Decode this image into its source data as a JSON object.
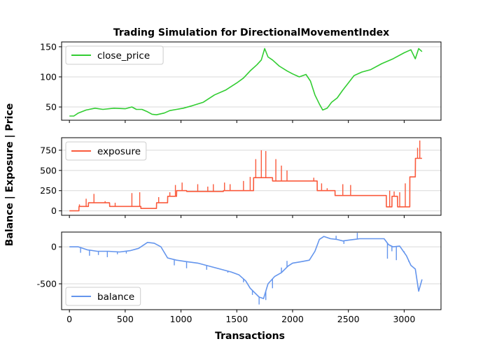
{
  "chart_data": {
    "title": "Trading Simulation for DirectionalMovementIndex",
    "xlabel": "Transactions",
    "ylabel": "Balance | Exposure | Price",
    "xlim": [
      -70,
      3330
    ],
    "xticks": [
      0,
      500,
      1000,
      1500,
      2000,
      2500,
      3000
    ],
    "grid": "horizontal",
    "panels": [
      {
        "type": "line",
        "series_name": "close_price",
        "color": "#32cd32",
        "legend_position": "upper-left",
        "ylim": [
          28,
          158
        ],
        "yticks": [
          50,
          100,
          150
        ],
        "x": [
          0,
          40,
          80,
          150,
          230,
          300,
          400,
          500,
          560,
          600,
          650,
          700,
          740,
          780,
          850,
          900,
          960,
          1020,
          1100,
          1200,
          1300,
          1400,
          1500,
          1560,
          1620,
          1680,
          1720,
          1750,
          1780,
          1820,
          1880,
          1950,
          2000,
          2060,
          2120,
          2160,
          2200,
          2240,
          2270,
          2310,
          2350,
          2400,
          2450,
          2500,
          2550,
          2620,
          2700,
          2800,
          2900,
          3000,
          3060,
          3100,
          3130,
          3160
        ],
        "values": [
          35,
          35,
          40,
          45,
          48,
          46,
          48,
          47,
          50,
          46,
          46,
          42,
          38,
          37,
          40,
          44,
          46,
          48,
          52,
          58,
          70,
          78,
          90,
          98,
          110,
          120,
          128,
          147,
          133,
          128,
          118,
          110,
          105,
          100,
          104,
          93,
          70,
          55,
          45,
          48,
          58,
          65,
          78,
          90,
          102,
          108,
          112,
          122,
          130,
          140,
          145,
          130,
          147,
          142
        ]
      },
      {
        "type": "line",
        "series_name": "exposure",
        "color": "#fa5a3c",
        "legend_position": "upper-left",
        "ylim": [
          -55,
          905
        ],
        "yticks": [
          0,
          250,
          500,
          750
        ],
        "x": [
          0,
          85,
          86,
          170,
          171,
          360,
          361,
          640,
          641,
          780,
          781,
          880,
          881,
          960,
          961,
          1050,
          1051,
          1380,
          1381,
          1650,
          1651,
          1820,
          1821,
          2220,
          2221,
          2380,
          2381,
          2840,
          2841,
          2890,
          2891,
          2940,
          2941,
          3050,
          3051,
          3100,
          3101,
          3160
        ],
        "values": [
          0,
          0,
          55,
          55,
          100,
          100,
          55,
          55,
          30,
          30,
          100,
          100,
          180,
          180,
          250,
          250,
          240,
          240,
          250,
          250,
          410,
          410,
          370,
          370,
          250,
          250,
          190,
          190,
          50,
          50,
          180,
          180,
          50,
          50,
          420,
          420,
          650,
          650
        ],
        "spike_x": [
          90,
          150,
          220,
          320,
          410,
          560,
          630,
          800,
          900,
          950,
          1010,
          1150,
          1240,
          1290,
          1390,
          1440,
          1560,
          1620,
          1670,
          1720,
          1760,
          1850,
          1900,
          1950,
          2190,
          2260,
          2310,
          2450,
          2520,
          2870,
          2910,
          2960,
          3010,
          3120,
          3140
        ],
        "spike_values": [
          80,
          150,
          210,
          120,
          100,
          220,
          230,
          170,
          230,
          320,
          350,
          330,
          300,
          330,
          350,
          330,
          370,
          420,
          640,
          750,
          740,
          640,
          560,
          500,
          410,
          340,
          280,
          330,
          320,
          250,
          240,
          230,
          340,
          780,
          870
        ]
      },
      {
        "type": "line",
        "series_name": "balance",
        "color": "#6495ed",
        "legend_position": "lower-left",
        "ylim": [
          -850,
          200
        ],
        "yticks": [
          0,
          -500
        ],
        "x": [
          0,
          80,
          160,
          250,
          350,
          450,
          550,
          620,
          700,
          760,
          820,
          880,
          960,
          1050,
          1150,
          1250,
          1350,
          1450,
          1520,
          1580,
          1620,
          1660,
          1700,
          1740,
          1780,
          1840,
          1900,
          1960,
          2000,
          2080,
          2150,
          2200,
          2240,
          2280,
          2340,
          2400,
          2450,
          2500,
          2550,
          2600,
          2650,
          2700,
          2760,
          2820,
          2860,
          2900,
          2960,
          3020,
          3060,
          3100,
          3130,
          3160
        ],
        "values": [
          0,
          0,
          -40,
          -60,
          -60,
          -70,
          -50,
          -20,
          60,
          50,
          0,
          -150,
          -180,
          -200,
          -220,
          -260,
          -300,
          -340,
          -380,
          -460,
          -560,
          -620,
          -680,
          -700,
          -500,
          -400,
          -350,
          -260,
          -220,
          -200,
          -180,
          -60,
          100,
          140,
          110,
          100,
          80,
          90,
          100,
          110,
          110,
          110,
          110,
          110,
          30,
          0,
          10,
          -120,
          -250,
          -300,
          -600,
          -440
        ],
        "spike_x": [
          100,
          180,
          260,
          340,
          430,
          510,
          940,
          1050,
          1230,
          1420,
          1560,
          1640,
          1700,
          1760,
          1820,
          1860,
          1900,
          1950,
          2390,
          2460,
          2580,
          2850,
          2890,
          2930,
          3000,
          3040
        ],
        "spike_values": [
          -80,
          -120,
          -110,
          -140,
          -100,
          -90,
          -250,
          -290,
          -310,
          -350,
          -480,
          -650,
          -780,
          -720,
          -560,
          -380,
          -280,
          -190,
          150,
          40,
          190,
          -160,
          -60,
          -180,
          -60,
          -200
        ]
      }
    ]
  }
}
